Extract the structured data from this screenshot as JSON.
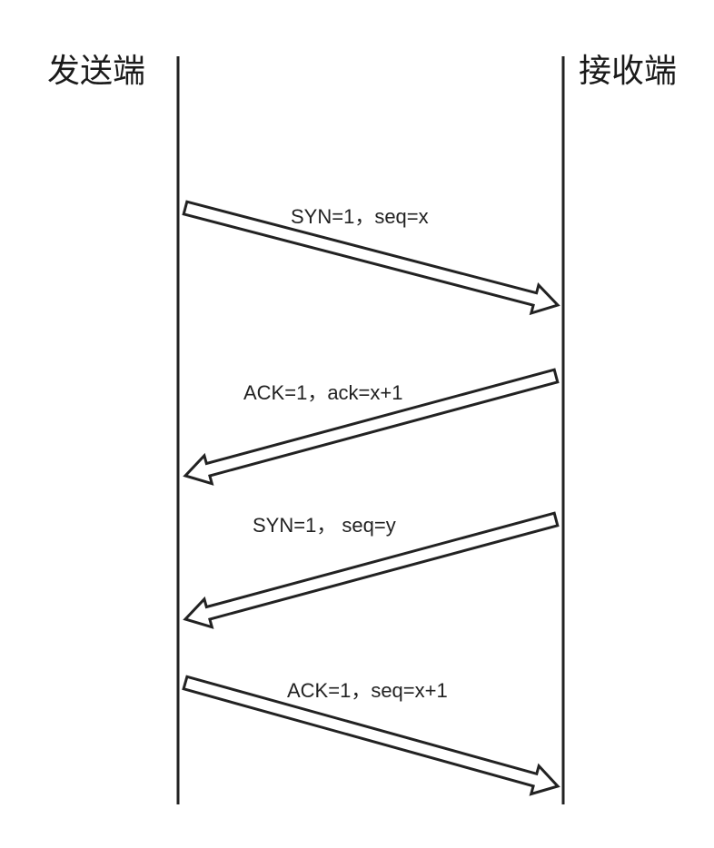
{
  "participants": {
    "sender": "发送端",
    "receiver": "接收端"
  },
  "messages": [
    {
      "label": "SYN=1，seq=x",
      "from": "sender",
      "to": "receiver"
    },
    {
      "label": "ACK=1，ack=x+1",
      "from": "receiver",
      "to": "sender"
    },
    {
      "label": "SYN=1，  seq=y",
      "from": "receiver",
      "to": "sender"
    },
    {
      "label": "ACK=1，seq=x+1",
      "from": "sender",
      "to": "receiver"
    }
  ],
  "colors": {
    "stroke": "#222222",
    "background": "#ffffff"
  }
}
